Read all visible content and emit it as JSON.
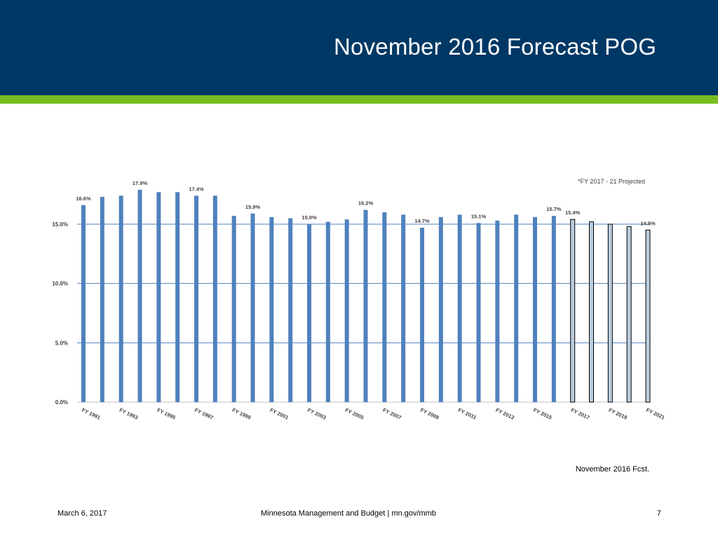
{
  "header": {
    "title": "November 2016 Forecast POG"
  },
  "chart_data": {
    "type": "bar",
    "note": "*FY 2017 - 21 Projected",
    "categories": [
      "FY 1991",
      "FY 1992",
      "FY 1993",
      "FY 1994",
      "FY 1995",
      "FY 1996",
      "FY 1997",
      "FY 1998",
      "FY 1999",
      "FY 2000",
      "FY 2001",
      "FY 2002",
      "FY 2003",
      "FY 2004",
      "FY 2005",
      "FY 2006",
      "FY 2007",
      "FY 2008",
      "FY 2009",
      "FY 2010",
      "FY 2011",
      "FY 2012",
      "FY 2013",
      "FY 2014",
      "FY 2015",
      "FY 2016",
      "FY 2017",
      "FY 2018",
      "FY 2019",
      "FY 2020",
      "FY 2021"
    ],
    "tick_labels": [
      "FY 1991",
      "FY 1993",
      "FY 1995",
      "FY 1997",
      "FY 1999",
      "FY 2001",
      "FY 2003",
      "FY 2005",
      "FY 2007",
      "FY 2009",
      "FY 2011",
      "FY 2013",
      "FY 2015",
      "FY 2017",
      "FY 2019",
      "FY 2021"
    ],
    "values": [
      16.6,
      17.3,
      17.4,
      17.9,
      17.7,
      17.7,
      17.4,
      17.4,
      15.7,
      15.9,
      15.6,
      15.5,
      15.0,
      15.2,
      15.4,
      16.2,
      16.0,
      15.8,
      14.7,
      15.6,
      15.8,
      15.1,
      15.3,
      15.8,
      15.6,
      15.7,
      15.4,
      15.2,
      15.0,
      14.8,
      14.5
    ],
    "projected_from_index": 26,
    "data_labels": {
      "0": "16.6%",
      "3": "17.9%",
      "6": "17.4%",
      "9": "15.9%",
      "12": "15.0%",
      "15": "16.2%",
      "18": "14.7%",
      "21": "15.1%",
      "25": "15.7%",
      "26": "15.4%",
      "30": "14.5%"
    },
    "y_ticks": [
      0,
      5,
      10,
      15
    ],
    "y_tick_labels": [
      "0.0%",
      "5.0%",
      "10.0%",
      "15.0%"
    ],
    "ylim": [
      0,
      18.6
    ],
    "grid": true,
    "colors": {
      "actual": "#4f81bd",
      "projected": "#b9cde0",
      "projected_border": "#000000",
      "grid": "#4f81bd",
      "axis_text": "#404040"
    }
  },
  "source_note": "November 2016 Fcst.",
  "footer": {
    "date": "March 6, 2017",
    "center": "Minnesota Management and Budget  |  mn.gov/mmb",
    "page": "7"
  }
}
